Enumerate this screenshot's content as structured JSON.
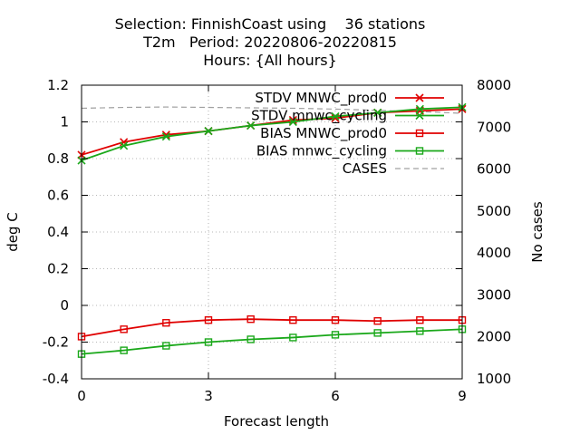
{
  "title": {
    "line1": "Selection: FinnishCoast using    36 stations",
    "line2": "T2m   Period: 20220806-20220815",
    "line3": "Hours: {All hours}"
  },
  "chart_data": {
    "type": "line",
    "title": "Selection: FinnishCoast using    36 stations / T2m   Period: 20220806-20220815 / Hours: {All hours}",
    "xlabel": "Forecast length",
    "ylabel": "deg C",
    "y2label": "No cases",
    "xlim": [
      0,
      9
    ],
    "ylim": [
      -0.4,
      1.2
    ],
    "y2lim": [
      1000,
      8000
    ],
    "xticks": [
      0,
      3,
      6,
      9
    ],
    "yticks": [
      -0.4,
      -0.2,
      0,
      0.2,
      0.4,
      0.6,
      0.8,
      1,
      1.2
    ],
    "yticklabels": [
      "-0.4",
      "-0.2",
      "0",
      "0.2",
      "0.4",
      "0.6",
      "0.8",
      "1",
      "1.2"
    ],
    "y2ticks": [
      1000,
      2000,
      3000,
      4000,
      5000,
      6000,
      7000,
      8000
    ],
    "grid": "dotted",
    "legend_position": "top-right",
    "x": [
      0,
      1,
      2,
      3,
      4,
      5,
      6,
      7,
      8,
      9
    ],
    "series": [
      {
        "name": "STDV MNWC_prod0",
        "axis": "y",
        "color": "#e00000",
        "marker": "x",
        "values": [
          0.82,
          0.89,
          0.93,
          0.95,
          0.98,
          1.01,
          1.02,
          1.05,
          1.06,
          1.07
        ]
      },
      {
        "name": "STDV mnwc_cycling",
        "axis": "y",
        "color": "#1aa81a",
        "marker": "x",
        "values": [
          0.79,
          0.87,
          0.92,
          0.95,
          0.98,
          1.0,
          1.03,
          1.05,
          1.07,
          1.08
        ]
      },
      {
        "name": "BIAS MNWC_prod0",
        "axis": "y",
        "color": "#e00000",
        "marker": "square",
        "values": [
          -0.17,
          -0.13,
          -0.095,
          -0.08,
          -0.075,
          -0.08,
          -0.08,
          -0.085,
          -0.08,
          -0.08
        ]
      },
      {
        "name": "BIAS mnwc_cycling",
        "axis": "y",
        "color": "#1aa81a",
        "marker": "square",
        "values": [
          -0.265,
          -0.245,
          -0.22,
          -0.2,
          -0.185,
          -0.175,
          -0.16,
          -0.15,
          -0.14,
          -0.13
        ]
      },
      {
        "name": "CASES",
        "axis": "y2",
        "color": "#a0a0a0",
        "marker": "none",
        "dashed": true,
        "values": [
          7450,
          7470,
          7480,
          7470,
          7460,
          7450,
          7430,
          7400,
          7370,
          7330
        ]
      }
    ]
  }
}
